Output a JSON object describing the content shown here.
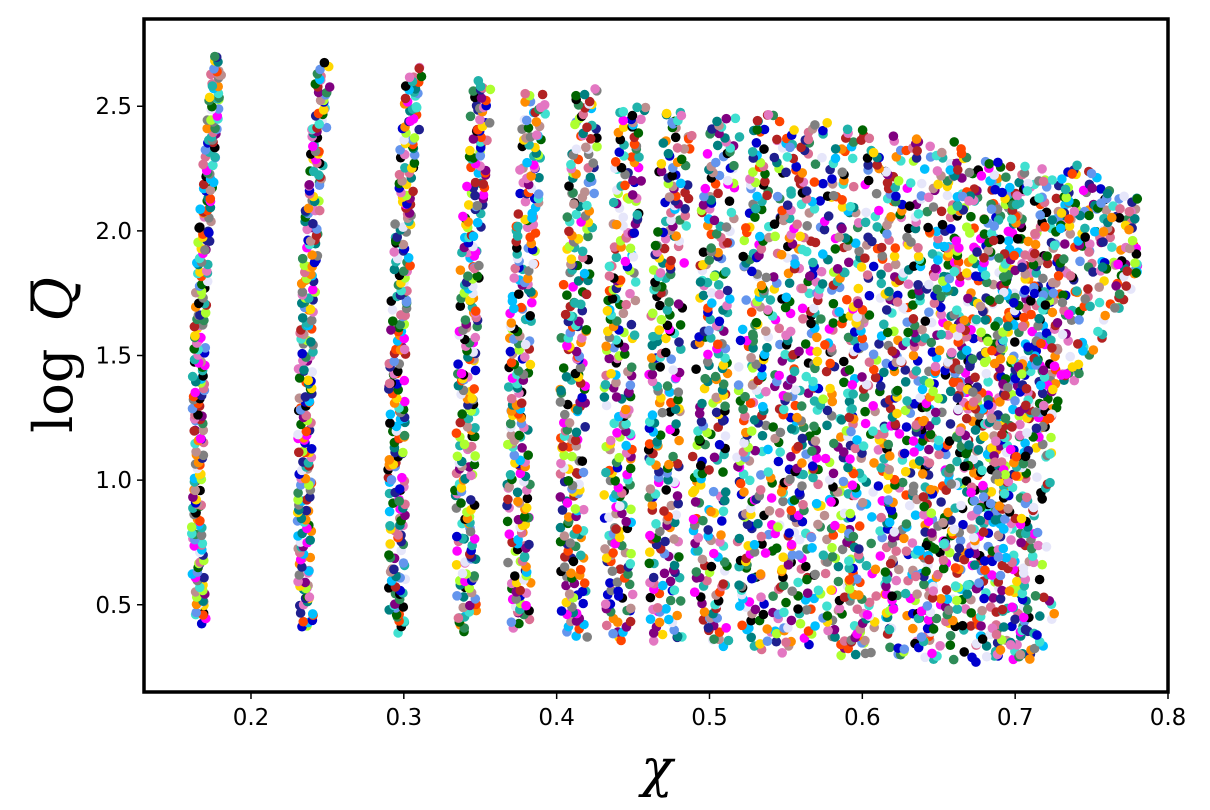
{
  "chart_data": {
    "type": "scatter",
    "title": "",
    "xlabel": "χ",
    "ylabel_parts": {
      "func": "log",
      "var": "Q",
      "overbar": true
    },
    "xlim": [
      0.13,
      0.8
    ],
    "ylim": [
      0.15,
      2.85
    ],
    "xticks": [
      0.2,
      0.3,
      0.4,
      0.5,
      0.6,
      0.7,
      0.8
    ],
    "xtick_labels": [
      "0.2",
      "0.3",
      "0.4",
      "0.5",
      "0.6",
      "0.7",
      "0.8"
    ],
    "yticks": [
      0.5,
      1.0,
      1.5,
      2.0,
      2.5
    ],
    "ytick_labels": [
      "0.5",
      "1.0",
      "1.5",
      "2.0",
      "2.5"
    ],
    "grid": false,
    "legend": "none",
    "marker_colors": [
      "#1f1f8f",
      "#e377c2",
      "#ffd700",
      "#008080",
      "#b22222",
      "#2e8b57",
      "#00bfff",
      "#000000",
      "#e6e6fa",
      "#808080",
      "#db7093",
      "#adff2f",
      "#ff4500",
      "#0000cd",
      "#ff00ff",
      "#40e0d0",
      "#800080",
      "#6495ed",
      "#006400",
      "#bc8f8f",
      "#ff8c00",
      "#20b2aa"
    ],
    "band_centers_x": [
      0.175,
      0.245,
      0.305,
      0.35,
      0.385,
      0.42,
      0.45,
      0.48,
      0.51,
      0.54,
      0.565,
      0.59,
      0.615,
      0.64,
      0.66,
      0.68,
      0.7,
      0.715
    ],
    "band_y_min": [
      0.43,
      0.41,
      0.4,
      0.4,
      0.41,
      0.37,
      0.36,
      0.35,
      0.34,
      0.33,
      0.32,
      0.31,
      0.3,
      0.3,
      0.29,
      0.28,
      0.28,
      0.28
    ],
    "band_y_max": [
      2.7,
      2.66,
      2.65,
      2.6,
      2.55,
      2.57,
      2.51,
      2.48,
      2.45,
      2.47,
      2.44,
      2.41,
      2.38,
      2.35,
      2.3,
      2.28,
      2.26,
      2.24
    ],
    "upper_envelope_end": {
      "x": 0.78,
      "y": 2.15
    },
    "lower_envelope_end": {
      "x": 0.715,
      "y": 0.28
    }
  }
}
